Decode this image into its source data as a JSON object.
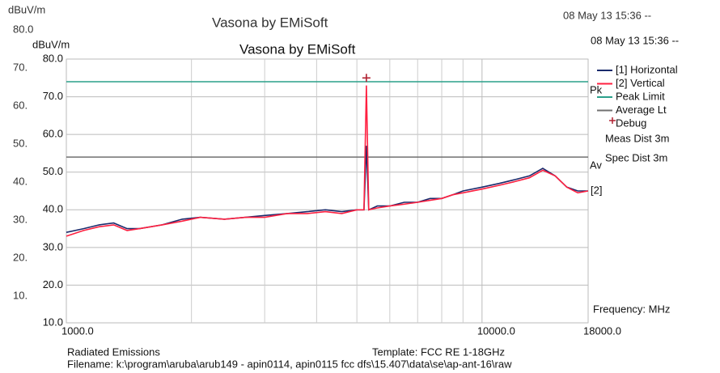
{
  "chart_data": {
    "type": "line",
    "title": "Vasona by EMiSoft",
    "date": "08 May 13 15:36 --",
    "y_label": "dBuV/m",
    "x_label": "Frequency: MHz",
    "x": [
      1000,
      1100,
      1200,
      1300,
      1400,
      1500,
      1700,
      1900,
      2100,
      2400,
      2700,
      3000,
      3400,
      3800,
      4200,
      4600,
      5000,
      5200,
      5270,
      5340,
      5600,
      6000,
      6500,
      7000,
      7500,
      8000,
      8500,
      9000,
      10000,
      11000,
      12000,
      13000,
      14000,
      15000,
      16000,
      17000,
      18000
    ],
    "series": [
      {
        "name": "[1] Horizontal",
        "color": "#1a2a6c",
        "values": [
          34,
          35,
          36,
          36.5,
          35,
          35,
          36,
          37.5,
          38,
          37.5,
          38,
          38.5,
          39,
          39.5,
          40,
          39.5,
          40,
          40,
          57,
          40,
          41,
          41,
          42,
          42,
          43,
          43,
          44,
          45,
          46,
          47,
          48,
          49,
          51,
          49,
          46,
          45,
          45
        ]
      },
      {
        "name": "[2] Vertical",
        "color": "#ff2040",
        "values": [
          33,
          34.5,
          35.5,
          36,
          34.5,
          35,
          36,
          37,
          38,
          37.5,
          38,
          38,
          39,
          39,
          39.5,
          39,
          40,
          40,
          73,
          40,
          40.5,
          41,
          41.5,
          42,
          42.5,
          43,
          44,
          44.5,
          45.5,
          46.5,
          47.5,
          48.5,
          50.5,
          49,
          46,
          44.5,
          45
        ]
      }
    ],
    "limits": [
      {
        "name": "Peak Limit",
        "value": 74,
        "color": "#2aa08a",
        "tag": "Pk"
      },
      {
        "name": "Average Lt",
        "value": 54,
        "color": "#707070",
        "tag": "Av"
      }
    ],
    "markers": [
      {
        "name": "Debug",
        "x": 5270,
        "y": 75,
        "color": "#b02030"
      }
    ],
    "end_tag": "[2]",
    "notes": [
      "Meas Dist 3m",
      "Spec Dist 3m"
    ],
    "xlog": true,
    "xlim": [
      1000,
      18000
    ],
    "ylim": [
      10,
      80
    ],
    "xticks": [
      {
        "value": 1000,
        "label": "1000.0"
      },
      {
        "value": 10000,
        "label": "10000.0"
      },
      {
        "value": 18000,
        "label": "18000.0"
      }
    ],
    "xminor": [
      2000,
      3000,
      4000,
      5000,
      6000,
      7000,
      8000,
      9000
    ],
    "yticks": [
      {
        "value": 10,
        "label": "10.0"
      },
      {
        "value": 20,
        "label": "20.0"
      },
      {
        "value": 30,
        "label": "30.0"
      },
      {
        "value": 40,
        "label": "40.0"
      },
      {
        "value": 50,
        "label": "50.0"
      },
      {
        "value": 60,
        "label": "60.0"
      },
      {
        "value": 70,
        "label": "70.0"
      },
      {
        "value": 80,
        "label": "80.0"
      }
    ],
    "grid": true
  },
  "ghost": {
    "y_label": "dBuV/m",
    "title": "Vasona by EMiSoft",
    "date": "08 May 13 15:36 --",
    "ticks": [
      "80.0",
      "70.",
      "60.",
      "50.",
      "40.",
      "30.",
      "20.",
      "10."
    ]
  },
  "footer": {
    "left": "Radiated Emissions",
    "template": "Template: FCC RE 1-18GHz",
    "filename": "Filename: k:\\program\\aruba\\arub149 - apin0114, apin0115 fcc dfs\\15.407\\data\\se\\ap-ant-16\\raw"
  }
}
